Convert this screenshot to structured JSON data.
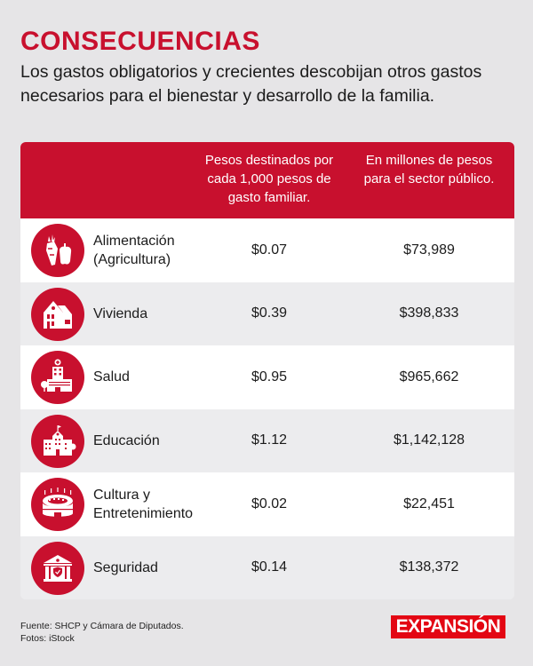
{
  "header": {
    "title": "CONSECUENCIAS",
    "subtitle": "Los gastos obligatorios y crecientes descobijan otros gastos necesarios para el bienestar y desarrollo de la familia."
  },
  "colors": {
    "accent": "#c8102e",
    "logo": "#e30613"
  },
  "table": {
    "columns": [
      "",
      "Pesos destinados por cada 1,000 pesos de gasto familiar.",
      "En millones de pesos para el sector público."
    ],
    "rows": [
      {
        "icon": "food-icon",
        "label_line1": "Alimentación",
        "label_line2": "(Agricultura)",
        "familiar": "$0.07",
        "publico": "$73,989"
      },
      {
        "icon": "house-icon",
        "label_line1": "Vivienda",
        "label_line2": "",
        "familiar": "$0.39",
        "publico": "$398,833"
      },
      {
        "icon": "hospital-icon",
        "label_line1": "Salud",
        "label_line2": "",
        "familiar": "$0.95",
        "publico": "$965,662"
      },
      {
        "icon": "school-icon",
        "label_line1": "Educación",
        "label_line2": "",
        "familiar": "$1.12",
        "publico": "$1,142,128"
      },
      {
        "icon": "stadium-icon",
        "label_line1": "Cultura y",
        "label_line2": "Entretenimiento",
        "familiar": "$0.02",
        "publico": "$22,451"
      },
      {
        "icon": "security-building-icon",
        "label_line1": "Seguridad",
        "label_line2": "",
        "familiar": "$0.14",
        "publico": "$138,372"
      }
    ]
  },
  "footer": {
    "source": "Fuente: SHCP y Cámara de Diputados.",
    "photos": "Fotos: iStock"
  },
  "logo": {
    "text": "EXPANSIÓN"
  }
}
